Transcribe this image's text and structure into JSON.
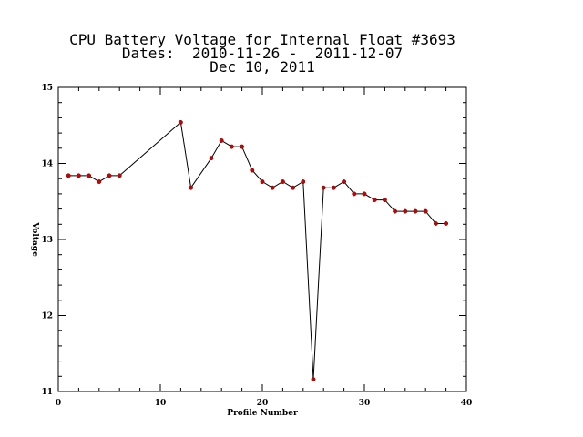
{
  "chart_data": {
    "type": "line",
    "title": "CPU Battery Voltage for Internal Float #3693",
    "subtitle": "Dates:  2010-11-26 -  2011-12-07",
    "date_line": "Dec 10, 2011",
    "xlabel": "Profile Number",
    "ylabel": "Voltage",
    "xlim": [
      0,
      40
    ],
    "ylim": [
      11,
      15
    ],
    "xticks": [
      0,
      10,
      20,
      30,
      40
    ],
    "yticks": [
      11,
      12,
      13,
      14,
      15
    ],
    "grid": false,
    "line_color": "#000000",
    "marker_color": "#cc0000",
    "x": [
      1,
      2,
      3,
      4,
      5,
      6,
      12,
      13,
      15,
      16,
      17,
      18,
      19,
      20,
      21,
      22,
      23,
      24,
      25,
      26,
      27,
      28,
      29,
      30,
      31,
      32,
      33,
      34,
      35,
      36,
      37,
      38
    ],
    "y": [
      13.84,
      13.84,
      13.84,
      13.76,
      13.84,
      13.84,
      14.54,
      13.68,
      14.07,
      14.3,
      14.22,
      14.22,
      13.91,
      13.76,
      13.68,
      13.76,
      13.68,
      13.76,
      11.16,
      13.68,
      13.68,
      13.76,
      13.6,
      13.6,
      13.52,
      13.52,
      13.37,
      13.37,
      13.37,
      13.37,
      13.21,
      13.21
    ]
  }
}
